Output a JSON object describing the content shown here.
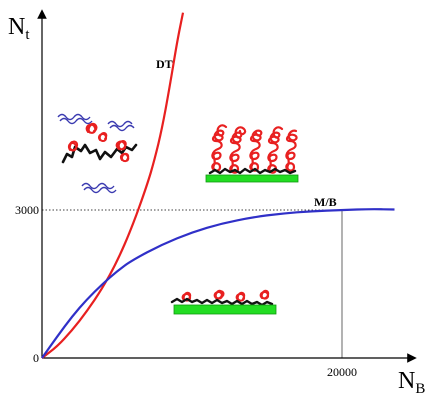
{
  "chart_data": {
    "type": "line",
    "xlabel": "N",
    "xlabel_sub": "B",
    "ylabel": "N",
    "ylabel_sub": "t",
    "xlim": [
      0,
      24000
    ],
    "ylim": [
      0,
      7000
    ],
    "x_ticks": [
      {
        "value": 20000,
        "label": "20000"
      }
    ],
    "y_ticks": [
      {
        "value": 3000,
        "label": "3000"
      },
      {
        "value": 0,
        "label": "0"
      }
    ],
    "grid": false,
    "legend": "none",
    "series": [
      {
        "name": "DT",
        "color": "#e82020",
        "x": [
          0,
          1000,
          2000,
          3000,
          4000,
          5000,
          6000,
          7000,
          7500,
          8000,
          8500,
          9000,
          9400
        ],
        "y": [
          0,
          230,
          560,
          950,
          1400,
          1950,
          2650,
          3500,
          4020,
          4650,
          5480,
          6400,
          7000
        ]
      },
      {
        "name": "M/B",
        "color": "#3030c8",
        "x": [
          0,
          1000,
          2000,
          3000,
          4000,
          5000,
          6000,
          8000,
          10000,
          12000,
          14000,
          16000,
          18000,
          20000,
          22000,
          23500
        ],
        "y": [
          0,
          430,
          840,
          1190,
          1490,
          1760,
          1980,
          2300,
          2550,
          2730,
          2850,
          2930,
          2975,
          3000,
          3020,
          3010
        ]
      }
    ],
    "reference_lines": [
      {
        "axis": "y",
        "value": 3000,
        "style": "dotted"
      },
      {
        "axis": "x",
        "value": 20000,
        "style": "solid"
      }
    ]
  },
  "colors": {
    "chain_red": "#e82020",
    "chain_black": "#111111",
    "solvent_blue": "#3a3ab0",
    "substrate_green": "#22dd22"
  }
}
